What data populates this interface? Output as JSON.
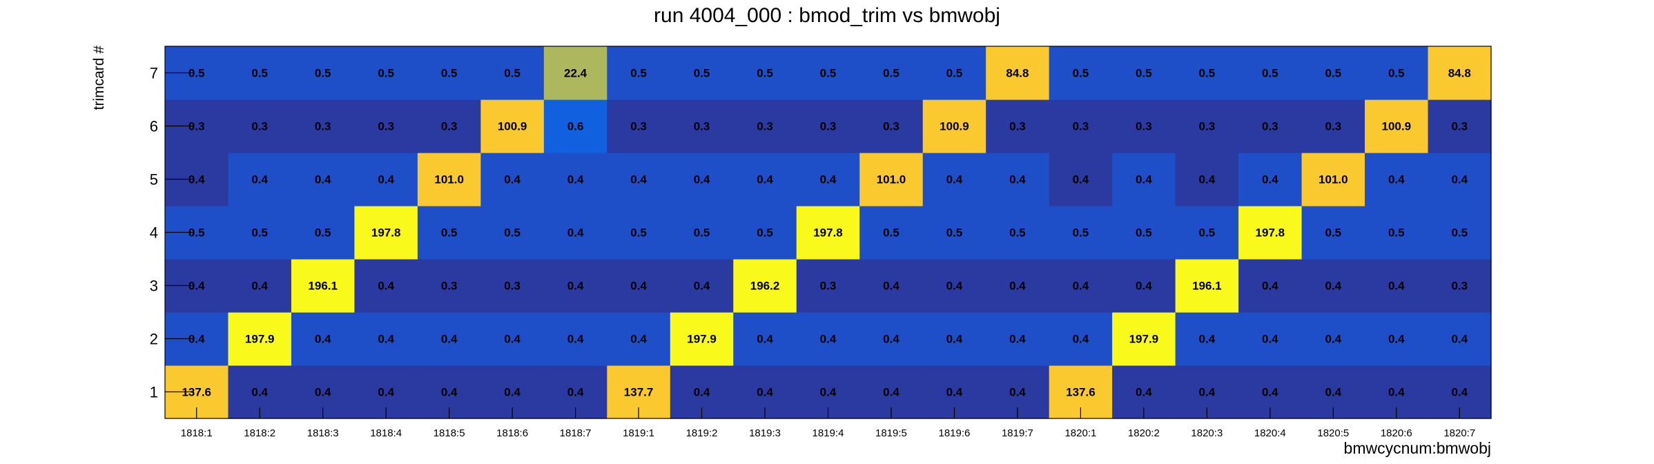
{
  "chart_data": {
    "type": "heatmap",
    "title": "run 4004_000 : bmod_trim vs bmwobj",
    "xlabel": "bmwcycnum:bmwobj",
    "ylabel": "trimcard #",
    "x_categories": [
      "1818:1",
      "1818:2",
      "1818:3",
      "1818:4",
      "1818:5",
      "1818:6",
      "1818:7",
      "1819:1",
      "1819:2",
      "1819:3",
      "1819:4",
      "1819:5",
      "1819:6",
      "1819:7",
      "1820:1",
      "1820:2",
      "1820:3",
      "1820:4",
      "1820:5",
      "1820:6",
      "1820:7"
    ],
    "y_categories": [
      "1",
      "2",
      "3",
      "4",
      "5",
      "6",
      "7"
    ],
    "cell_labels": [
      [
        "137.6",
        "0.4",
        "0.4",
        "0.4",
        "0.4",
        "0.4",
        "0.4",
        "137.7",
        "0.4",
        "0.4",
        "0.4",
        "0.4",
        "0.4",
        "0.4",
        "137.6",
        "0.4",
        "0.4",
        "0.4",
        "0.4",
        "0.4",
        "0.4"
      ],
      [
        "0.4",
        "197.9",
        "0.4",
        "0.4",
        "0.4",
        "0.4",
        "0.4",
        "0.4",
        "197.9",
        "0.4",
        "0.4",
        "0.4",
        "0.4",
        "0.4",
        "0.4",
        "197.9",
        "0.4",
        "0.4",
        "0.4",
        "0.4",
        "0.4"
      ],
      [
        "0.4",
        "0.4",
        "196.1",
        "0.4",
        "0.3",
        "0.3",
        "0.4",
        "0.4",
        "0.4",
        "196.2",
        "0.3",
        "0.4",
        "0.4",
        "0.4",
        "0.4",
        "0.4",
        "196.1",
        "0.4",
        "0.4",
        "0.4",
        "0.3"
      ],
      [
        "0.5",
        "0.5",
        "0.5",
        "197.8",
        "0.5",
        "0.5",
        "0.4",
        "0.5",
        "0.5",
        "0.5",
        "197.8",
        "0.5",
        "0.5",
        "0.5",
        "0.5",
        "0.5",
        "0.5",
        "197.8",
        "0.5",
        "0.5",
        "0.5"
      ],
      [
        "0.4",
        "0.4",
        "0.4",
        "0.4",
        "101.0",
        "0.4",
        "0.4",
        "0.4",
        "0.4",
        "0.4",
        "0.4",
        "101.0",
        "0.4",
        "0.4",
        "0.4",
        "0.4",
        "0.4",
        "0.4",
        "101.0",
        "0.4",
        "0.4"
      ],
      [
        "0.3",
        "0.3",
        "0.3",
        "0.3",
        "0.3",
        "100.9",
        "0.6",
        "0.3",
        "0.3",
        "0.3",
        "0.3",
        "0.3",
        "100.9",
        "0.3",
        "0.3",
        "0.3",
        "0.3",
        "0.3",
        "0.3",
        "100.9",
        "0.3"
      ],
      [
        "0.5",
        "0.5",
        "0.5",
        "0.5",
        "0.5",
        "0.5",
        "22.4",
        "0.5",
        "0.5",
        "0.5",
        "0.5",
        "0.5",
        "0.5",
        "84.8",
        "0.5",
        "0.5",
        "0.5",
        "0.5",
        "0.5",
        "0.5",
        "84.8"
      ]
    ],
    "grid": false,
    "legend": "none"
  },
  "colors": {
    "low_dark": "#2a3aa0",
    "low_mid": "#1f4fc8",
    "low_bright": "#1060e0",
    "olive": "#adb85e",
    "orange": "#fac92f",
    "yellow": "#f9f91b",
    "text": "#000000",
    "frame": "#000000"
  }
}
